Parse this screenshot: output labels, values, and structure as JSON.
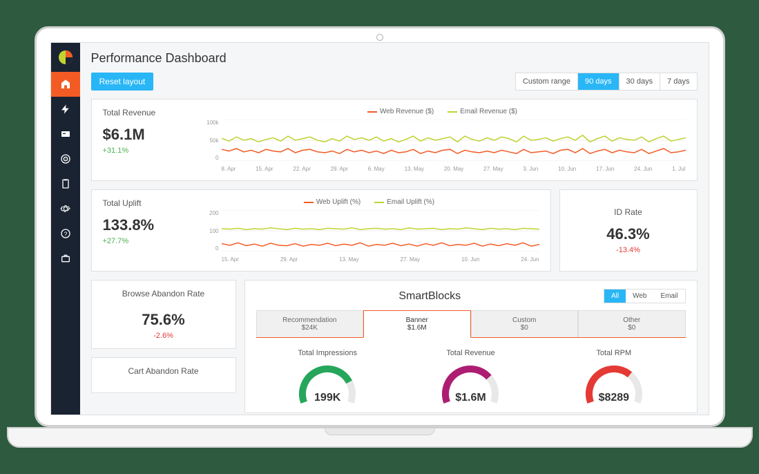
{
  "page": {
    "title": "Performance Dashboard"
  },
  "controls": {
    "reset_label": "Reset layout",
    "ranges": [
      "Custom range",
      "90 days",
      "30 days",
      "7 days"
    ],
    "active_range_index": 1
  },
  "sidebar": {
    "active_index": 0,
    "items": [
      {
        "name": "home-icon"
      },
      {
        "name": "bolt-icon"
      },
      {
        "name": "card-icon"
      },
      {
        "name": "target-icon"
      },
      {
        "name": "clipboard-icon"
      },
      {
        "name": "gear-icon"
      },
      {
        "name": "help-icon"
      },
      {
        "name": "briefcase-icon"
      }
    ]
  },
  "colors": {
    "web": "#f35b25",
    "email": "#c0d330",
    "accent": "#29b6f6",
    "sidebar": "#1a2332",
    "grid": "#eeeeee",
    "text": "#333333",
    "pos": "#4caf50",
    "neg": "#e53935"
  },
  "revenue": {
    "label": "Total Revenue",
    "value": "$6.1M",
    "delta": "+31.1%",
    "delta_sign": "pos",
    "legend": {
      "web": "Web Revenue ($)",
      "email": "Email Revenue ($)"
    },
    "y_ticks": [
      "100k",
      "50k",
      "0"
    ],
    "x_ticks": [
      "8. Apr",
      "15. Apr",
      "22. Apr",
      "29. Apr",
      "6. May",
      "13. May",
      "20. May",
      "27. May",
      "3. Jun",
      "10. Jun",
      "17. Jun",
      "24. Jun",
      "1. Jul"
    ],
    "ylim": [
      0,
      100
    ],
    "series": {
      "email": [
        55,
        48,
        58,
        50,
        54,
        46,
        52,
        56,
        48,
        60,
        50,
        54,
        58,
        50,
        46,
        54,
        48,
        60,
        52,
        56,
        50,
        58,
        48,
        54,
        46,
        52,
        60,
        48,
        56,
        50,
        54,
        58,
        46,
        60,
        52,
        48,
        56,
        50,
        58,
        54,
        46,
        60,
        50,
        52,
        56,
        48,
        54,
        58,
        50,
        62,
        46,
        54,
        60,
        48,
        56,
        52,
        50,
        58,
        46,
        54,
        60,
        48,
        52,
        56
      ],
      "web": [
        28,
        24,
        30,
        22,
        26,
        20,
        28,
        24,
        22,
        30,
        20,
        26,
        28,
        22,
        20,
        24,
        18,
        28,
        22,
        26,
        20,
        24,
        18,
        26,
        20,
        22,
        28,
        18,
        24,
        20,
        26,
        28,
        18,
        26,
        22,
        20,
        24,
        20,
        26,
        22,
        18,
        28,
        20,
        22,
        24,
        18,
        26,
        28,
        20,
        30,
        18,
        24,
        28,
        20,
        26,
        22,
        20,
        28,
        18,
        24,
        30,
        20,
        22,
        26
      ]
    }
  },
  "uplift": {
    "label": "Total Uplift",
    "value": "133.8%",
    "delta": "+27.7%",
    "delta_sign": "pos",
    "legend": {
      "web": "Web Uplift (%)",
      "email": "Email Uplift (%)"
    },
    "y_ticks": [
      "200",
      "100",
      "0"
    ],
    "x_ticks": [
      "15. Apr",
      "29. Apr",
      "13. May",
      "27. May",
      "10. Jun",
      "24. Jun"
    ],
    "ylim": [
      0,
      200
    ],
    "series": {
      "email": [
        110,
        108,
        112,
        106,
        110,
        108,
        114,
        110,
        106,
        112,
        108,
        110,
        106,
        112,
        110,
        108,
        114,
        106,
        110,
        112,
        108,
        110,
        106,
        114,
        108,
        110,
        112,
        106,
        110,
        108,
        114,
        110,
        106,
        112,
        108,
        110,
        106,
        112,
        110,
        108
      ],
      "web": [
        38,
        30,
        42,
        28,
        36,
        26,
        40,
        30,
        28,
        38,
        26,
        34,
        30,
        40,
        28,
        36,
        30,
        42,
        26,
        34,
        30,
        40,
        28,
        36,
        26,
        38,
        30,
        42,
        28,
        34,
        30,
        40,
        26,
        36,
        28,
        38,
        30,
        42,
        26,
        34
      ]
    }
  },
  "id_rate": {
    "label": "ID Rate",
    "value": "46.3%",
    "delta": "-13.4%",
    "delta_sign": "neg"
  },
  "browse_abandon": {
    "label": "Browse Abandon Rate",
    "value": "75.6%",
    "delta": "-2.6%",
    "delta_sign": "neg"
  },
  "cart_abandon": {
    "label": "Cart Abandon Rate"
  },
  "smartblocks": {
    "title": "SmartBlocks",
    "toggles": [
      "All",
      "Web",
      "Email"
    ],
    "active_toggle": 0,
    "tabs": [
      {
        "label": "Recommendation",
        "value": "$24K"
      },
      {
        "label": "Banner",
        "value": "$1.6M"
      },
      {
        "label": "Custom",
        "value": "$0"
      },
      {
        "label": "Other",
        "value": "$0"
      }
    ],
    "active_tab": 1,
    "gauges": [
      {
        "label": "Total Impressions",
        "value": "199K",
        "color": "#26a65b",
        "pct": 0.78
      },
      {
        "label": "Total Revenue",
        "value": "$1.6M",
        "color": "#ad1e72",
        "pct": 0.72
      },
      {
        "label": "Total RPM",
        "value": "$8289",
        "color": "#e53935",
        "pct": 0.68
      }
    ]
  }
}
